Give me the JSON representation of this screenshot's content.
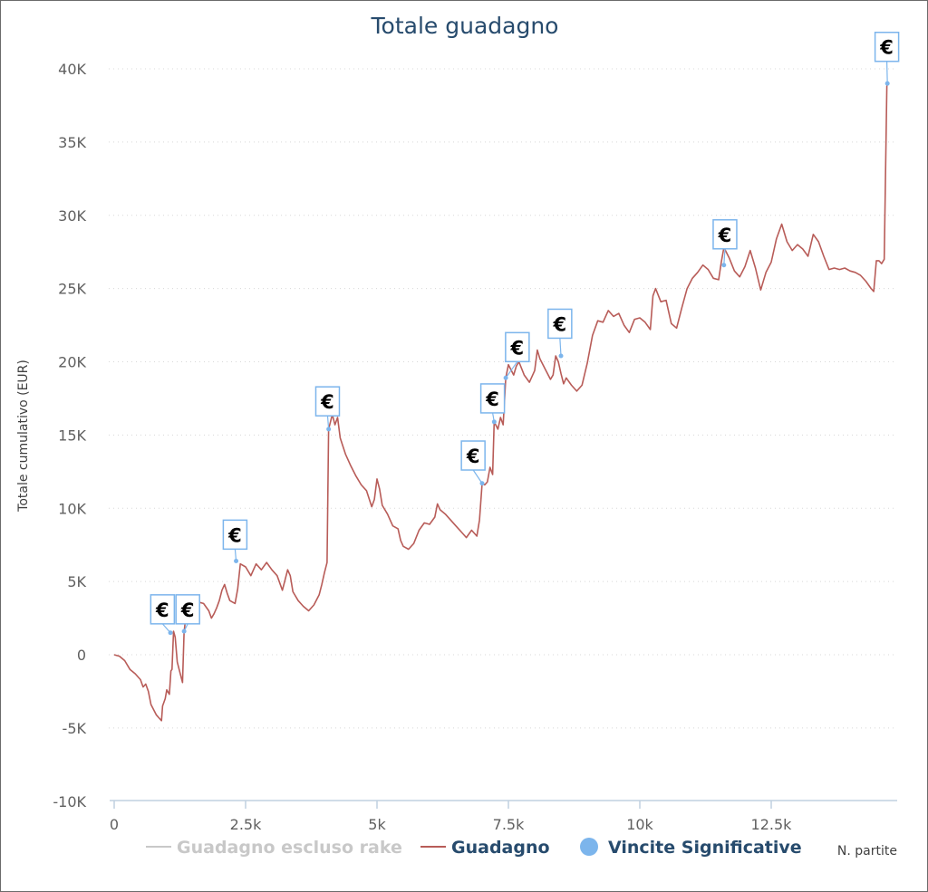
{
  "chart_data": {
    "type": "line",
    "title": "Totale guadagno",
    "ylabel": "Totale cumulativo (EUR)",
    "xlabel": "N. partite",
    "xlim": [
      0,
      14900
    ],
    "ylim": [
      -10000,
      40000
    ],
    "x_ticks": [
      {
        "value": 0,
        "label": "0"
      },
      {
        "value": 2500,
        "label": "2.5k"
      },
      {
        "value": 5000,
        "label": "5k"
      },
      {
        "value": 7500,
        "label": "7.5k"
      },
      {
        "value": 10000,
        "label": "10k"
      },
      {
        "value": 12500,
        "label": "12.5k"
      }
    ],
    "y_ticks": [
      {
        "value": 40000,
        "label": "40K"
      },
      {
        "value": 35000,
        "label": "35K"
      },
      {
        "value": 30000,
        "label": "30K"
      },
      {
        "value": 25000,
        "label": "25K"
      },
      {
        "value": 20000,
        "label": "20K"
      },
      {
        "value": 15000,
        "label": "15K"
      },
      {
        "value": 10000,
        "label": "10K"
      },
      {
        "value": 5000,
        "label": "5K"
      },
      {
        "value": 0,
        "label": "0"
      },
      {
        "value": -5000,
        "label": "-5K"
      },
      {
        "value": -10000,
        "label": "-10K"
      }
    ],
    "grid": "horizontal-dotted",
    "legend_placement": "bottom",
    "series": [
      {
        "name": "Guadagno escluso rake",
        "color": "#c8c8c8",
        "hidden": true,
        "points": []
      },
      {
        "name": "Guadagno",
        "color": "#b85c58",
        "points": [
          [
            0,
            0
          ],
          [
            100,
            -100
          ],
          [
            200,
            -400
          ],
          [
            300,
            -1000
          ],
          [
            400,
            -1300
          ],
          [
            500,
            -1700
          ],
          [
            550,
            -2200
          ],
          [
            600,
            -2000
          ],
          [
            650,
            -2500
          ],
          [
            700,
            -3400
          ],
          [
            800,
            -4100
          ],
          [
            850,
            -4300
          ],
          [
            900,
            -4500
          ],
          [
            920,
            -3500
          ],
          [
            970,
            -3000
          ],
          [
            1000,
            -2400
          ],
          [
            1050,
            -2700
          ],
          [
            1080,
            -1100
          ],
          [
            1100,
            -1000
          ],
          [
            1130,
            1600
          ],
          [
            1160,
            1200
          ],
          [
            1200,
            -500
          ],
          [
            1250,
            -1200
          ],
          [
            1300,
            -1900
          ],
          [
            1330,
            1500
          ],
          [
            1380,
            3200
          ],
          [
            1450,
            3600
          ],
          [
            1500,
            3900
          ],
          [
            1600,
            3600
          ],
          [
            1700,
            3500
          ],
          [
            1800,
            3000
          ],
          [
            1850,
            2500
          ],
          [
            1900,
            2800
          ],
          [
            1950,
            3200
          ],
          [
            2000,
            3700
          ],
          [
            2050,
            4400
          ],
          [
            2100,
            4800
          ],
          [
            2150,
            4200
          ],
          [
            2200,
            3700
          ],
          [
            2300,
            3500
          ],
          [
            2350,
            4500
          ],
          [
            2400,
            6200
          ],
          [
            2500,
            6000
          ],
          [
            2600,
            5400
          ],
          [
            2700,
            6200
          ],
          [
            2800,
            5800
          ],
          [
            2900,
            6300
          ],
          [
            3000,
            5800
          ],
          [
            3100,
            5400
          ],
          [
            3200,
            4400
          ],
          [
            3300,
            5800
          ],
          [
            3350,
            5400
          ],
          [
            3400,
            4300
          ],
          [
            3500,
            3700
          ],
          [
            3600,
            3300
          ],
          [
            3700,
            3000
          ],
          [
            3800,
            3400
          ],
          [
            3900,
            4100
          ],
          [
            3950,
            4800
          ],
          [
            4000,
            5600
          ],
          [
            4050,
            6300
          ],
          [
            4080,
            15400
          ],
          [
            4150,
            16400
          ],
          [
            4200,
            15700
          ],
          [
            4250,
            16200
          ],
          [
            4300,
            14800
          ],
          [
            4400,
            13700
          ],
          [
            4500,
            12900
          ],
          [
            4600,
            12200
          ],
          [
            4700,
            11600
          ],
          [
            4800,
            11200
          ],
          [
            4900,
            10100
          ],
          [
            4950,
            10600
          ],
          [
            5000,
            12000
          ],
          [
            5050,
            11300
          ],
          [
            5100,
            10200
          ],
          [
            5200,
            9600
          ],
          [
            5300,
            8800
          ],
          [
            5400,
            8600
          ],
          [
            5450,
            7800
          ],
          [
            5500,
            7400
          ],
          [
            5600,
            7200
          ],
          [
            5700,
            7600
          ],
          [
            5800,
            8500
          ],
          [
            5900,
            9000
          ],
          [
            6000,
            8900
          ],
          [
            6100,
            9400
          ],
          [
            6150,
            10300
          ],
          [
            6200,
            9900
          ],
          [
            6300,
            9600
          ],
          [
            6400,
            9200
          ],
          [
            6500,
            8800
          ],
          [
            6600,
            8400
          ],
          [
            6700,
            8000
          ],
          [
            6800,
            8500
          ],
          [
            6900,
            8100
          ],
          [
            6950,
            9200
          ],
          [
            7000,
            11700
          ],
          [
            7050,
            11600
          ],
          [
            7100,
            11800
          ],
          [
            7150,
            12800
          ],
          [
            7200,
            12300
          ],
          [
            7230,
            15900
          ],
          [
            7300,
            15400
          ],
          [
            7350,
            16200
          ],
          [
            7400,
            15700
          ],
          [
            7450,
            18900
          ],
          [
            7500,
            19800
          ],
          [
            7600,
            19100
          ],
          [
            7650,
            19700
          ],
          [
            7700,
            20000
          ],
          [
            7800,
            19100
          ],
          [
            7900,
            18600
          ],
          [
            8000,
            19400
          ],
          [
            8050,
            20800
          ],
          [
            8100,
            20200
          ],
          [
            8200,
            19500
          ],
          [
            8300,
            18800
          ],
          [
            8350,
            19100
          ],
          [
            8400,
            20400
          ],
          [
            8450,
            20000
          ],
          [
            8500,
            19200
          ],
          [
            8550,
            18500
          ],
          [
            8600,
            18900
          ],
          [
            8700,
            18400
          ],
          [
            8800,
            18000
          ],
          [
            8900,
            18400
          ],
          [
            9000,
            19900
          ],
          [
            9100,
            21800
          ],
          [
            9200,
            22800
          ],
          [
            9300,
            22700
          ],
          [
            9400,
            23500
          ],
          [
            9500,
            23100
          ],
          [
            9600,
            23300
          ],
          [
            9700,
            22500
          ],
          [
            9800,
            22000
          ],
          [
            9900,
            22900
          ],
          [
            10000,
            23000
          ],
          [
            10100,
            22700
          ],
          [
            10200,
            22200
          ],
          [
            10250,
            24500
          ],
          [
            10300,
            25000
          ],
          [
            10400,
            24100
          ],
          [
            10500,
            24200
          ],
          [
            10600,
            22600
          ],
          [
            10700,
            22300
          ],
          [
            10800,
            23700
          ],
          [
            10900,
            25000
          ],
          [
            11000,
            25700
          ],
          [
            11100,
            26100
          ],
          [
            11200,
            26600
          ],
          [
            11300,
            26300
          ],
          [
            11400,
            25700
          ],
          [
            11500,
            25600
          ],
          [
            11550,
            26800
          ],
          [
            11600,
            27800
          ],
          [
            11700,
            27100
          ],
          [
            11800,
            26200
          ],
          [
            11900,
            25800
          ],
          [
            12000,
            26500
          ],
          [
            12100,
            27600
          ],
          [
            12200,
            26400
          ],
          [
            12300,
            24900
          ],
          [
            12400,
            26100
          ],
          [
            12500,
            26800
          ],
          [
            12600,
            28400
          ],
          [
            12700,
            29400
          ],
          [
            12800,
            28200
          ],
          [
            12900,
            27600
          ],
          [
            13000,
            28000
          ],
          [
            13100,
            27700
          ],
          [
            13200,
            27200
          ],
          [
            13300,
            28700
          ],
          [
            13400,
            28200
          ],
          [
            13500,
            27200
          ],
          [
            13600,
            26300
          ],
          [
            13700,
            26400
          ],
          [
            13800,
            26300
          ],
          [
            13900,
            26400
          ],
          [
            14000,
            26200
          ],
          [
            14100,
            26100
          ],
          [
            14200,
            25900
          ],
          [
            14300,
            25500
          ],
          [
            14400,
            25000
          ],
          [
            14450,
            24800
          ],
          [
            14500,
            26900
          ],
          [
            14550,
            26900
          ],
          [
            14600,
            26700
          ],
          [
            14650,
            27000
          ],
          [
            14700,
            38800
          ],
          [
            14710,
            39000
          ]
        ]
      }
    ],
    "markers": {
      "name": "Vincite Significative",
      "color": "#7cb5ec",
      "points": [
        {
          "x": 1070,
          "y": 1500,
          "label": "€",
          "flag_x": 920,
          "flag_y": 3100
        },
        {
          "x": 1330,
          "y": 1600,
          "label": "€",
          "flag_x": 1400,
          "flag_y": 3100
        },
        {
          "x": 2320,
          "y": 6400,
          "label": "€",
          "flag_x": 2300,
          "flag_y": 8200
        },
        {
          "x": 4080,
          "y": 15400,
          "label": "€",
          "flag_x": 4060,
          "flag_y": 17300
        },
        {
          "x": 7000,
          "y": 11700,
          "label": "€",
          "flag_x": 6830,
          "flag_y": 13600
        },
        {
          "x": 7230,
          "y": 15900,
          "label": "€",
          "flag_x": 7200,
          "flag_y": 17500
        },
        {
          "x": 7450,
          "y": 18900,
          "label": "€",
          "flag_x": 7670,
          "flag_y": 21000
        },
        {
          "x": 8500,
          "y": 20400,
          "label": "€",
          "flag_x": 8480,
          "flag_y": 22600
        },
        {
          "x": 11600,
          "y": 26600,
          "label": "€",
          "flag_x": 11620,
          "flag_y": 28700
        },
        {
          "x": 14710,
          "y": 39000,
          "label": "€",
          "flag_x": 14700,
          "flag_y": 41500
        }
      ]
    },
    "legend": [
      {
        "name": "Guadagno escluso rake",
        "color": "#c8c8c8",
        "symbol": "line"
      },
      {
        "name": "Guadagno",
        "color": "#b85c58",
        "symbol": "line"
      },
      {
        "name": "Vincite Significative",
        "color": "#7cb5ec",
        "symbol": "dot"
      }
    ]
  }
}
